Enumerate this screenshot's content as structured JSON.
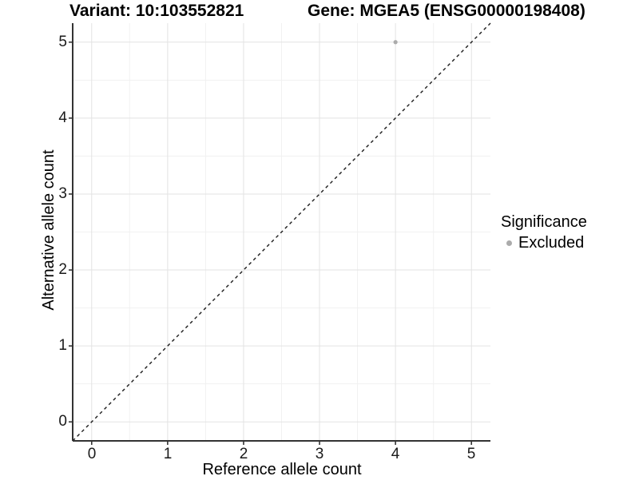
{
  "chart_data": {
    "type": "scatter",
    "title_left": "Variant: 10:103552821",
    "title_right": "Gene: MGEA5 (ENSG00000198408)",
    "xlabel": "Reference allele count",
    "ylabel": "Alternative allele count",
    "xlim": [
      -0.25,
      5.25
    ],
    "ylim": [
      -0.25,
      5.25
    ],
    "xticks": [
      0,
      1,
      2,
      3,
      4,
      5
    ],
    "yticks": [
      0,
      1,
      2,
      3,
      4,
      5
    ],
    "minor_grid_step": 0.5,
    "grid": true,
    "reference_line": {
      "type": "identity",
      "from": [
        -0.25,
        -0.25
      ],
      "to": [
        5.25,
        5.25
      ],
      "style": "dashed",
      "color": "#1a1a1a"
    },
    "series": [
      {
        "name": "Excluded",
        "color": "#ababab",
        "marker": "circle",
        "points": [
          [
            4,
            5
          ]
        ]
      }
    ],
    "legend": {
      "position": "right",
      "title": "Significance",
      "entries": [
        {
          "label": "Excluded",
          "color": "#ababab",
          "marker": "circle"
        }
      ]
    },
    "colors": {
      "background": "#ffffff",
      "grid_major": "#e3e3e3",
      "grid_minor": "#f1f1f1",
      "axis": "#333333",
      "point": "#ababab"
    }
  }
}
